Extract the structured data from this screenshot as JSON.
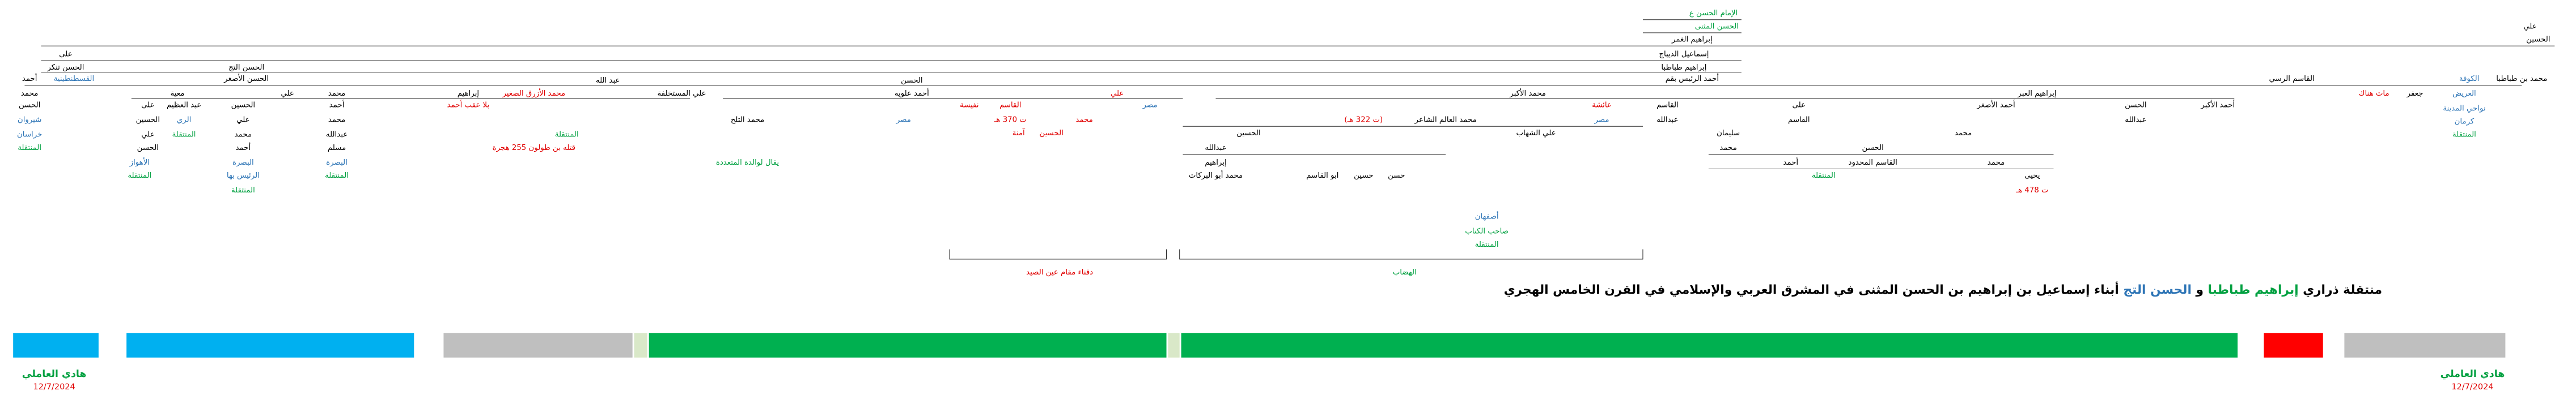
{
  "tree": {
    "nodes": [
      {
        "text": "الإمام الحسن ع",
        "color": "#00a040"
      },
      {
        "text": "الحسن المثنى",
        "color": "#00a040"
      },
      {
        "text": "إبراهيم الغمر",
        "color": "#000000"
      },
      {
        "text": "إسماعيل الديباج",
        "color": "#000000"
      },
      {
        "text": "إبراهيم طباطبا",
        "color": "#000000"
      },
      {
        "text": "أحمد الرئيس بقم",
        "color": "#000000"
      },
      {
        "text": "علي",
        "color": "#000000"
      },
      {
        "text": "الحسين",
        "color": "#000000"
      },
      {
        "text": "محمد بن طباطبا",
        "color": "#000000"
      },
      {
        "text": "الكوفة",
        "color": "#2e75b6"
      },
      {
        "text": "القاسم الرسي",
        "color": "#000000"
      },
      {
        "text": "إبراهيم العبر",
        "color": "#000000"
      },
      {
        "text": "الحسن",
        "color": "#000000"
      },
      {
        "text": "عبد الله",
        "color": "#000000"
      },
      {
        "text": "الحسن التج",
        "color": "#000000"
      },
      {
        "text": "الحسن الأصغر",
        "color": "#000000"
      },
      {
        "text": "علي",
        "color": "#000000"
      },
      {
        "text": "الحسن تنكر",
        "color": "#000000"
      },
      {
        "text": "القسطنطينية",
        "color": "#2e75b6"
      },
      {
        "text": "محمد الأكبر",
        "color": "#000000"
      },
      {
        "text": "أحمد علويه",
        "color": "#000000"
      },
      {
        "text": "علي",
        "color": "#e00000"
      },
      {
        "text": "معية",
        "color": "#000000"
      },
      {
        "text": "علي",
        "color": "#000000"
      },
      {
        "text": "محمد",
        "color": "#000000"
      },
      {
        "text": "إبراهيم",
        "color": "#000000"
      },
      {
        "text": "محمد الأزرق الصغير",
        "color": "#e00000"
      },
      {
        "text": "علي المستخلفة",
        "color": "#000000"
      },
      {
        "text": "جعفر",
        "color": "#000000"
      },
      {
        "text": "مات هناك",
        "color": "#e00000"
      },
      {
        "text": "العريض",
        "color": "#2e75b6"
      },
      {
        "text": "نواحي المدينة",
        "color": "#2e75b6"
      },
      {
        "text": "كرمان",
        "color": "#2e75b6"
      },
      {
        "text": "المنتقلة",
        "color": "#00a040"
      },
      {
        "text": "أحمد الأكبر",
        "color": "#000000"
      },
      {
        "text": "الحسن",
        "color": "#000000"
      },
      {
        "text": "عبدالله",
        "color": "#000000"
      },
      {
        "text": "أحمد الأصغر",
        "color": "#000000"
      },
      {
        "text": "القاسم",
        "color": "#000000"
      },
      {
        "text": "عبدالله",
        "color": "#000000"
      },
      {
        "text": "علي",
        "color": "#000000"
      },
      {
        "text": "القاسم",
        "color": "#000000"
      },
      {
        "text": "عائشة",
        "color": "#e00000"
      },
      {
        "text": "مصر",
        "color": "#2e75b6"
      },
      {
        "text": "علي الشهاب",
        "color": "#000000"
      },
      {
        "text": "محمد العالم الشاعر",
        "color": "#000000"
      },
      {
        "text": "(ت 322 هـ)",
        "color": "#e00000"
      },
      {
        "text": "الحسين",
        "color": "#000000"
      },
      {
        "text": "محمد",
        "color": "#000000"
      },
      {
        "text": "الحسن",
        "color": "#000000"
      },
      {
        "text": "القاسم المحدود",
        "color": "#000000"
      },
      {
        "text": "محمد",
        "color": "#000000"
      },
      {
        "text": "يحيى",
        "color": "#000000"
      },
      {
        "text": "ت 478 هـ",
        "color": "#e00000"
      },
      {
        "text": "سليمان",
        "color": "#000000"
      },
      {
        "text": "محمد",
        "color": "#000000"
      },
      {
        "text": "المنتقلة",
        "color": "#00a040"
      },
      {
        "text": "أحمد",
        "color": "#000000"
      },
      {
        "text": "القاسم",
        "color": "#e00000"
      },
      {
        "text": "نفيسة",
        "color": "#e00000"
      },
      {
        "text": "ت 370 هـ",
        "color": "#e00000"
      },
      {
        "text": "محمد",
        "color": "#e00000"
      },
      {
        "text": "مصر",
        "color": "#2e75b6"
      },
      {
        "text": "الحسين",
        "color": "#e00000"
      },
      {
        "text": "آمنة",
        "color": "#e00000"
      },
      {
        "text": "محمد التلح",
        "color": "#000000"
      },
      {
        "text": "يقال لوالدة المتعددة",
        "color": "#00a040"
      },
      {
        "text": "مصر",
        "color": "#2e75b6"
      },
      {
        "text": "قتله بن طولون 255 هجرة",
        "color": "#e00000"
      },
      {
        "text": "بلا عقب أحمد",
        "color": "#e00000"
      },
      {
        "text": "المنتقلة",
        "color": "#00a040"
      },
      {
        "text": "علي",
        "color": "#000000"
      },
      {
        "text": "الحسين",
        "color": "#000000"
      },
      {
        "text": "علي",
        "color": "#000000"
      },
      {
        "text": "الحسن",
        "color": "#000000"
      },
      {
        "text": "الأهواز",
        "color": "#2e75b6"
      },
      {
        "text": "المنتقلة",
        "color": "#00a040"
      },
      {
        "text": "عبد العظيم",
        "color": "#000000"
      },
      {
        "text": "الري",
        "color": "#2e75b6"
      },
      {
        "text": "المنتقلة",
        "color": "#00a040"
      },
      {
        "text": "أحمد",
        "color": "#000000"
      },
      {
        "text": "محمد",
        "color": "#000000"
      },
      {
        "text": "الحسن",
        "color": "#000000"
      },
      {
        "text": "شيروان",
        "color": "#2e75b6"
      },
      {
        "text": "خراسان",
        "color": "#2e75b6"
      },
      {
        "text": "المنتقلة",
        "color": "#00a040"
      },
      {
        "text": "الحسين",
        "color": "#000000"
      },
      {
        "text": "علي",
        "color": "#000000"
      },
      {
        "text": "محمد",
        "color": "#000000"
      },
      {
        "text": "أحمد",
        "color": "#000000"
      },
      {
        "text": "البصرة",
        "color": "#2e75b6"
      },
      {
        "text": "الرئيس بها",
        "color": "#2e75b6"
      },
      {
        "text": "المنتقلة",
        "color": "#00a040"
      },
      {
        "text": "أحمد",
        "color": "#000000"
      },
      {
        "text": "محمد",
        "color": "#000000"
      },
      {
        "text": "عبدالله",
        "color": "#000000"
      },
      {
        "text": "مسلم",
        "color": "#000000"
      },
      {
        "text": "البصرة",
        "color": "#2e75b6"
      },
      {
        "text": "المنتقلة",
        "color": "#00a040"
      },
      {
        "text": "أصفهان",
        "color": "#2e75b6"
      },
      {
        "text": "صاحب الكتاب",
        "color": "#00a040"
      },
      {
        "text": "المنتقلة",
        "color": "#00a040"
      },
      {
        "text": "ابو القاسم",
        "color": "#000000"
      },
      {
        "text": "حسين",
        "color": "#000000"
      },
      {
        "text": "حسن",
        "color": "#000000"
      },
      {
        "text": "عبدالله",
        "color": "#000000"
      },
      {
        "text": "إبراهيم",
        "color": "#000000"
      },
      {
        "text": "محمد أبو البركات",
        "color": "#000000"
      },
      {
        "text": "الهضاب",
        "color": "#00a040"
      },
      {
        "text": "دفناء مقام عين الصيد",
        "color": "#e00000"
      }
    ]
  },
  "title": {
    "parts": [
      {
        "text": "منتقلة ذراري",
        "color": "#000000"
      },
      {
        "text": "إبراهيم طباطبا",
        "color": "#00a040"
      },
      {
        "text": "و",
        "color": "#000000"
      },
      {
        "text": "الحسن التج",
        "color": "#2e75b6"
      },
      {
        "text": "أبناء إسماعيل بن إبراهيم بن الحسن المثنى في المشرق العربي والإسلامي في القرن الخامس الهجري",
        "color": "#000000"
      }
    ]
  },
  "signatures": [
    {
      "name": "هادي العاملي",
      "date": "12/7/2024"
    },
    {
      "name": "هادي العاملي",
      "date": "12/7/2024"
    }
  ]
}
